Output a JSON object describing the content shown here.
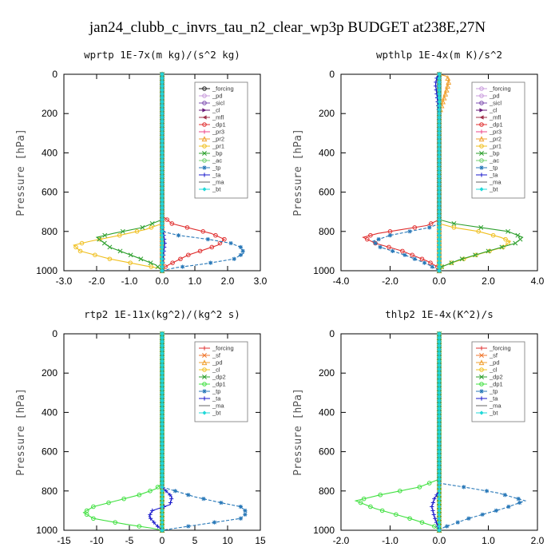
{
  "figure_title": "jan24_clubb_c_invrs_tau_n2_clear_wp3p  BUDGET at238E,27N",
  "chart_data": [
    {
      "type": "line",
      "title": "wprtp  1E-7x(m kg)/(s^2 kg)",
      "ylabel": "Pressure [hPa]",
      "xlim": [
        -3,
        3
      ],
      "ylim": [
        1000,
        0
      ],
      "x_ticks": [
        "-3.0",
        "-2.0",
        "-1.0",
        "0.0",
        "1.0",
        "2.0",
        "3.0"
      ],
      "x_tick_values": [
        -3,
        -2,
        -1,
        0,
        1,
        2,
        3
      ],
      "y_ticks": [
        "0",
        "200",
        "400",
        "600",
        "800",
        "1000"
      ],
      "y_tick_values": [
        0,
        200,
        400,
        600,
        800,
        1000
      ],
      "legend_position": "top-right",
      "series": [
        {
          "name": "_forcing",
          "color": "#222222",
          "marker": "o",
          "x": [
            0,
            0,
            0
          ],
          "y": [
            0,
            500,
            1000
          ]
        },
        {
          "name": "_pd",
          "color": "#c89bdc",
          "marker": "o",
          "x": [
            0,
            0
          ],
          "y": [
            0,
            1000
          ]
        },
        {
          "name": "_sicl",
          "color": "#7e4fb0",
          "marker": "o",
          "x": [
            0,
            0
          ],
          "y": [
            0,
            1000
          ]
        },
        {
          "name": "_cl",
          "color": "#6a1b7a",
          "marker": ">",
          "x": [
            0,
            0
          ],
          "y": [
            0,
            1000
          ]
        },
        {
          "name": "_mfl",
          "color": "#a0304a",
          "marker": "<",
          "x": [
            0,
            0
          ],
          "y": [
            0,
            1000
          ]
        },
        {
          "name": "_dp1",
          "color": "#e03030",
          "marker": "o",
          "x": [
            0,
            0,
            0.3,
            1.0,
            1.5,
            1.9,
            1.7,
            0.8,
            0.2,
            0,
            0
          ],
          "y": [
            0,
            720,
            760,
            790,
            810,
            840,
            870,
            920,
            970,
            990,
            1000
          ]
        },
        {
          "name": "_pr3",
          "color": "#ee4488",
          "marker": "+",
          "x": [
            0,
            0
          ],
          "y": [
            0,
            1000
          ]
        },
        {
          "name": "_pr2",
          "color": "#f0a030",
          "marker": "^",
          "x": [
            0,
            0
          ],
          "y": [
            0,
            1000
          ]
        },
        {
          "name": "_pr1",
          "color": "#f0c020",
          "marker": "o",
          "x": [
            0,
            0,
            -0.5,
            -1.3,
            -2.2,
            -2.7,
            -2.5,
            -1.6,
            -0.5,
            0,
            0
          ],
          "y": [
            0,
            760,
            790,
            820,
            850,
            870,
            900,
            940,
            975,
            990,
            1000
          ]
        },
        {
          "name": "_bp",
          "color": "#2ea02e",
          "marker": "x",
          "x": [
            0,
            0,
            -0.6,
            -1.5,
            -2.0,
            -1.6,
            -0.8,
            -0.2,
            0
          ],
          "y": [
            0,
            740,
            780,
            810,
            830,
            880,
            930,
            970,
            1000
          ]
        },
        {
          "name": "_ac",
          "color": "#70d070",
          "marker": "o",
          "x": [
            0,
            0
          ],
          "y": [
            0,
            1000
          ]
        },
        {
          "name": "_tp",
          "color": "#2878b8",
          "marker": "*",
          "x": [
            0,
            0,
            0.5,
            1.4,
            2.1,
            2.4,
            2.5,
            2.2,
            1.3,
            0.4,
            0
          ],
          "y": [
            0,
            800,
            820,
            840,
            860,
            880,
            910,
            940,
            965,
            985,
            1000
          ]
        },
        {
          "name": "_ta",
          "color": "#1a1acc",
          "marker": "+",
          "x": [
            0,
            0,
            0.05,
            0.08,
            0.04,
            0
          ],
          "y": [
            0,
            780,
            820,
            860,
            920,
            1000
          ]
        },
        {
          "name": "_ma",
          "color": "#666666",
          "marker": "-",
          "x": [
            0,
            0
          ],
          "y": [
            0,
            1000
          ]
        },
        {
          "name": "_bt",
          "color": "#20d8d8",
          "marker": "D",
          "x": [
            0,
            0
          ],
          "y": [
            0,
            1000
          ]
        }
      ]
    },
    {
      "type": "line",
      "title": "wpthlp  1E-4x(m K)/s^2",
      "ylabel": "Pressure [hPa]",
      "xlim": [
        -4,
        4
      ],
      "ylim": [
        1000,
        0
      ],
      "x_ticks": [
        "-4.0",
        "-2.0",
        "0.0",
        "2.0",
        "4.0"
      ],
      "x_tick_values": [
        -4,
        -2,
        0,
        2,
        4
      ],
      "y_ticks": [
        "0",
        "200",
        "400",
        "600",
        "800",
        "1000"
      ],
      "y_tick_values": [
        0,
        200,
        400,
        600,
        800,
        1000
      ],
      "legend_position": "top-right",
      "series": [
        {
          "name": "_forcing",
          "color": "#c89bdc",
          "marker": "o",
          "x": [
            0,
            0,
            0
          ],
          "y": [
            0,
            500,
            1000
          ]
        },
        {
          "name": "_pd",
          "color": "#c89bdc",
          "marker": "o",
          "x": [
            0,
            0
          ],
          "y": [
            0,
            1000
          ]
        },
        {
          "name": "_sicl",
          "color": "#7e4fb0",
          "marker": "o",
          "x": [
            0,
            0
          ],
          "y": [
            0,
            1000
          ]
        },
        {
          "name": "_cl",
          "color": "#6a1b7a",
          "marker": ">",
          "x": [
            0,
            0
          ],
          "y": [
            0,
            1000
          ]
        },
        {
          "name": "_mfl",
          "color": "#a0304a",
          "marker": "<",
          "x": [
            0,
            0
          ],
          "y": [
            0,
            1000
          ]
        },
        {
          "name": "_dp1",
          "color": "#e03030",
          "marker": "o",
          "x": [
            0,
            0,
            -0.5,
            -1.5,
            -2.5,
            -3.1,
            -2.6,
            -1.5,
            -0.5,
            0,
            0
          ],
          "y": [
            0,
            740,
            770,
            790,
            810,
            830,
            860,
            900,
            950,
            985,
            1000
          ]
        },
        {
          "name": "_pr3",
          "color": "#ee4488",
          "marker": "+",
          "x": [
            0,
            0
          ],
          "y": [
            0,
            1000
          ]
        },
        {
          "name": "_pr2",
          "color": "#f0a030",
          "marker": "^",
          "x": [
            0,
            0.3,
            0.4,
            0.3,
            0
          ],
          "y": [
            0,
            10,
            30,
            80,
            200
          ]
        },
        {
          "name": "_pr1",
          "color": "#f0c020",
          "marker": "o",
          "x": [
            0,
            0,
            0.6,
            1.6,
            2.5,
            2.9,
            2.6,
            1.5,
            0.5,
            0,
            0
          ],
          "y": [
            0,
            760,
            780,
            800,
            830,
            850,
            880,
            920,
            960,
            985,
            1000
          ]
        },
        {
          "name": "_bp",
          "color": "#2ea02e",
          "marker": "x",
          "x": [
            0,
            0,
            0.6,
            1.7,
            2.8,
            3.4,
            3.1,
            2.0,
            0.8,
            0.1,
            0
          ],
          "y": [
            0,
            740,
            760,
            780,
            800,
            830,
            860,
            900,
            945,
            980,
            1000
          ]
        },
        {
          "name": "_ac",
          "color": "#70d070",
          "marker": "o",
          "x": [
            0,
            0
          ],
          "y": [
            0,
            1000
          ]
        },
        {
          "name": "_tp",
          "color": "#2878b8",
          "marker": "*",
          "x": [
            0,
            0,
            -0.4,
            -1.2,
            -2.0,
            -2.7,
            -2.4,
            -1.4,
            -0.5,
            0
          ],
          "y": [
            0,
            760,
            780,
            800,
            820,
            850,
            880,
            920,
            965,
            1000
          ]
        },
        {
          "name": "_ta",
          "color": "#1a1acc",
          "marker": "+",
          "x": [
            0,
            -0.1,
            -0.15,
            -0.1,
            0
          ],
          "y": [
            0,
            20,
            50,
            100,
            200
          ]
        },
        {
          "name": "_ma",
          "color": "#666666",
          "marker": "-",
          "x": [
            0,
            0
          ],
          "y": [
            0,
            1000
          ]
        },
        {
          "name": "_bt",
          "color": "#20d8d8",
          "marker": "D",
          "x": [
            0,
            0
          ],
          "y": [
            0,
            1000
          ]
        }
      ]
    },
    {
      "type": "line",
      "title": "rtp2  1E-11x(kg^2)/(kg^2 s)",
      "ylabel": "Pressure [hPa]",
      "xlim": [
        -15,
        15
      ],
      "ylim": [
        1000,
        0
      ],
      "x_ticks": [
        "-15",
        "-10",
        "-5",
        "0",
        "5",
        "10",
        "15"
      ],
      "x_tick_values": [
        -15,
        -10,
        -5,
        0,
        5,
        10,
        15
      ],
      "y_ticks": [
        "0",
        "200",
        "400",
        "600",
        "800",
        "1000"
      ],
      "y_tick_values": [
        0,
        200,
        400,
        600,
        800,
        1000
      ],
      "legend_position": "top-right",
      "series": [
        {
          "name": "_forcing",
          "color": "#e03030",
          "marker": "+",
          "x": [
            0,
            0,
            0
          ],
          "y": [
            0,
            500,
            1000
          ]
        },
        {
          "name": "_sf",
          "color": "#f07830",
          "marker": "x",
          "x": [
            0,
            0
          ],
          "y": [
            0,
            1000
          ]
        },
        {
          "name": "_pd",
          "color": "#f0a030",
          "marker": "^",
          "x": [
            0,
            0
          ],
          "y": [
            0,
            1000
          ]
        },
        {
          "name": "_cl",
          "color": "#f0c020",
          "marker": "o",
          "x": [
            0,
            0
          ],
          "y": [
            0,
            1000
          ]
        },
        {
          "name": "_dp2",
          "color": "#2ea02e",
          "marker": "x",
          "x": [
            0,
            0
          ],
          "y": [
            0,
            1000
          ]
        },
        {
          "name": "_dp1",
          "color": "#40e040",
          "marker": "o",
          "x": [
            0,
            0,
            -1.0,
            -3.5,
            -7.0,
            -10.5,
            -12.0,
            -10.5,
            -5.5,
            -1.5,
            0
          ],
          "y": [
            0,
            760,
            790,
            820,
            850,
            880,
            910,
            940,
            970,
            990,
            1000
          ]
        },
        {
          "name": "_tp",
          "color": "#2878b8",
          "marker": "*",
          "x": [
            0,
            0,
            2.0,
            5.0,
            9.0,
            12.0,
            13.0,
            12.0,
            7.0,
            2.0,
            0
          ],
          "y": [
            0,
            780,
            800,
            830,
            860,
            880,
            910,
            940,
            965,
            990,
            1000
          ]
        },
        {
          "name": "_ta",
          "color": "#1a1acc",
          "marker": "+",
          "x": [
            0,
            0,
            1.5,
            1.2,
            -1.5,
            -2.0,
            -1.0,
            0
          ],
          "y": [
            0,
            780,
            830,
            870,
            900,
            930,
            970,
            1000
          ]
        },
        {
          "name": "_ma",
          "color": "#666666",
          "marker": "-",
          "x": [
            0,
            0
          ],
          "y": [
            0,
            1000
          ]
        },
        {
          "name": "_bt",
          "color": "#20d8d8",
          "marker": "D",
          "x": [
            0,
            0
          ],
          "y": [
            0,
            1000
          ]
        }
      ]
    },
    {
      "type": "line",
      "title": "thlp2  1E-4x(K^2)/s",
      "ylabel": "Pressure [hPa]",
      "xlim": [
        -2,
        2
      ],
      "ylim": [
        1000,
        0
      ],
      "x_ticks": [
        "-2.0",
        "-1.0",
        "0.0",
        "1.0",
        "2.0"
      ],
      "x_tick_values": [
        -2,
        -1,
        0,
        1,
        2
      ],
      "y_ticks": [
        "0",
        "200",
        "400",
        "600",
        "800",
        "1000"
      ],
      "y_tick_values": [
        0,
        200,
        400,
        600,
        800,
        1000
      ],
      "legend_position": "top-right",
      "series": [
        {
          "name": "_forcing",
          "color": "#e03030",
          "marker": "+",
          "x": [
            0,
            0,
            0
          ],
          "y": [
            0,
            500,
            1000
          ]
        },
        {
          "name": "_sf",
          "color": "#f07830",
          "marker": "x",
          "x": [
            0,
            0
          ],
          "y": [
            0,
            1000
          ]
        },
        {
          "name": "_pd",
          "color": "#f0a030",
          "marker": "^",
          "x": [
            0,
            0
          ],
          "y": [
            0,
            1000
          ]
        },
        {
          "name": "_cl",
          "color": "#f0c020",
          "marker": "o",
          "x": [
            0,
            0
          ],
          "y": [
            0,
            1000
          ]
        },
        {
          "name": "_dp2",
          "color": "#2ea02e",
          "marker": "x",
          "x": [
            0,
            0
          ],
          "y": [
            0,
            1000
          ]
        },
        {
          "name": "_dp1",
          "color": "#40e040",
          "marker": "o",
          "x": [
            0,
            0,
            -0.4,
            -1.2,
            -1.7,
            -1.3,
            -0.6,
            -0.1,
            0
          ],
          "y": [
            0,
            740,
            780,
            820,
            850,
            890,
            940,
            980,
            1000
          ]
        },
        {
          "name": "_tp",
          "color": "#2878b8",
          "marker": "*",
          "x": [
            0,
            0,
            0.5,
            1.2,
            1.75,
            1.3,
            0.6,
            0.1,
            0
          ],
          "y": [
            0,
            760,
            780,
            810,
            850,
            890,
            940,
            985,
            1000
          ]
        },
        {
          "name": "_ta",
          "color": "#1a1acc",
          "marker": "+",
          "x": [
            0,
            0,
            -0.1,
            -0.15,
            -0.1,
            0
          ],
          "y": [
            0,
            800,
            840,
            880,
            930,
            1000
          ]
        },
        {
          "name": "_ma",
          "color": "#666666",
          "marker": "-",
          "x": [
            0,
            0
          ],
          "y": [
            0,
            1000
          ]
        },
        {
          "name": "_bt",
          "color": "#20d8d8",
          "marker": "D",
          "x": [
            0,
            0
          ],
          "y": [
            0,
            1000
          ]
        }
      ]
    }
  ]
}
